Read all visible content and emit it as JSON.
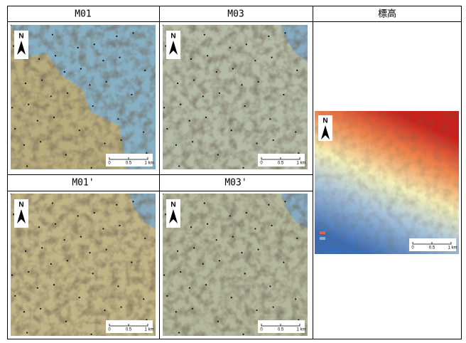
{
  "table": {
    "header": [
      "M01",
      "M03",
      "標高"
    ],
    "header2": [
      "M01'",
      "M03'"
    ]
  },
  "map": {
    "north": "N",
    "scale": [
      "0",
      "0.5",
      "1 km"
    ]
  }
}
